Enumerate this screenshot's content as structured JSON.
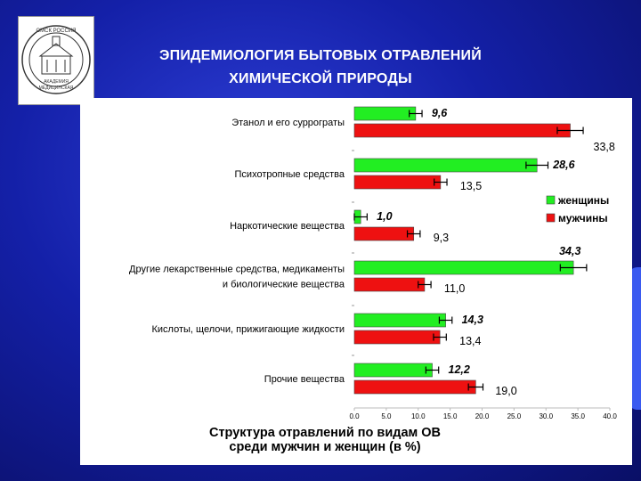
{
  "slide": {
    "title_line1": "ЭПИДЕМИОЛОГИЯ БЫТОВЫХ ОТРАВЛЕНИЙ",
    "title_line2": "ХИМИЧЕСКОЙ ПРИРОДЫ",
    "logo": {
      "text_top": "ОМСК РОССИЯ",
      "text_mid": "АКАДЕМИЯ",
      "text_bot": "МЕДИЦИНСКАЯ"
    },
    "background_color": "#1420a8"
  },
  "chart_data": {
    "type": "bar",
    "orientation": "horizontal",
    "caption_line1": "Структура отравлений по видам ОВ",
    "caption_line2": "среди мужчин и женщин (в %)",
    "categories": [
      [
        "Этанол и его суррограты"
      ],
      [
        "Психотропные средства"
      ],
      [
        "Наркотические вещества"
      ],
      [
        "Другие лекарственные средства, медикаменты",
        "и биологические вещества"
      ],
      [
        "Кислоты, щелочи, прижигающие жидкости"
      ],
      [
        "Прочие вещества"
      ]
    ],
    "series": [
      {
        "name": "женщины",
        "color": "#22ee22",
        "values": [
          9.6,
          28.6,
          1.0,
          34.3,
          14.3,
          12.2
        ],
        "labels": [
          "9,6",
          "28,6",
          "1,0",
          "34,3",
          "14,3",
          "12,2"
        ]
      },
      {
        "name": "мужчины",
        "color": "#ee1111",
        "values": [
          33.8,
          13.5,
          9.3,
          11.0,
          13.4,
          19.0
        ],
        "labels": [
          "33,8",
          "13,5",
          "9,3",
          "11,0",
          "13,4",
          "19,0"
        ]
      }
    ],
    "error_bars": true,
    "xlim": [
      0,
      40
    ],
    "x_ticks": [
      "0.0",
      "5.0",
      "10.0",
      "15.0",
      "20.0",
      "25.0",
      "30.0",
      "35.0",
      "40.0"
    ],
    "legend_placement": "right"
  }
}
